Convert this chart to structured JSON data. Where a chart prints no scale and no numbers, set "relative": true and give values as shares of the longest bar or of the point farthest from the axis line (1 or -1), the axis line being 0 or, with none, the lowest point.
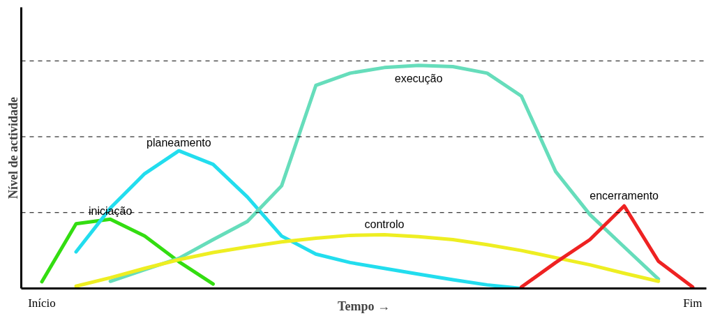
{
  "chart_data": {
    "type": "line",
    "relative": true,
    "xlabel": "Tempo →",
    "ylabel": "Nível de actividade",
    "categories": [
      "Início",
      null,
      null,
      null,
      null,
      null,
      null,
      null,
      null,
      null,
      null,
      null,
      null,
      null,
      null,
      null,
      null,
      null,
      null,
      "Fim"
    ],
    "ref_lines": [
      {
        "axis": "y",
        "value": 0.34,
        "line_style": "dashed",
        "color": "#000000"
      },
      {
        "axis": "y",
        "value": 0.68,
        "line_style": "dashed",
        "color": "#000000"
      },
      {
        "axis": "y",
        "value": 1.02,
        "line_style": "dashed",
        "color": "#000000"
      }
    ],
    "series": [
      {
        "name": "iniciação",
        "color": "#33dd11",
        "values": [
          0.03,
          0.29,
          0.31,
          0.235,
          0.12,
          0.02,
          null,
          null,
          null,
          null,
          null,
          null,
          null,
          null,
          null,
          null,
          null,
          null,
          null,
          null
        ]
      },
      {
        "name": "planeamento",
        "color": "#22ddee",
        "values": [
          null,
          0.164,
          0.36,
          0.514,
          0.617,
          0.556,
          0.41,
          0.235,
          0.154,
          0.116,
          0.09,
          0.064,
          0.039,
          0.016,
          0,
          null,
          null,
          null,
          null,
          null
        ]
      },
      {
        "name": "execução",
        "color": "#66ddbb",
        "values": [
          null,
          null,
          0.032,
          0.084,
          0.135,
          0.219,
          0.3,
          0.46,
          0.91,
          0.965,
          0.99,
          1.0,
          0.994,
          0.965,
          0.862,
          0.524,
          0.331,
          0.186,
          0.042,
          null
        ]
      },
      {
        "name": "controlo",
        "color": "#eeee22",
        "values": [
          null,
          0.01,
          0.048,
          0.09,
          0.129,
          0.161,
          0.186,
          0.209,
          0.225,
          0.238,
          0.241,
          0.232,
          0.219,
          0.196,
          0.17,
          0.138,
          0.106,
          0.068,
          0.032,
          null
        ]
      },
      {
        "name": "encerramento",
        "color": "#ee2222",
        "values": [
          null,
          null,
          null,
          null,
          null,
          null,
          null,
          null,
          null,
          null,
          null,
          null,
          null,
          null,
          0.006,
          0.116,
          0.219,
          0.37,
          0.122,
          0.006
        ]
      }
    ]
  }
}
